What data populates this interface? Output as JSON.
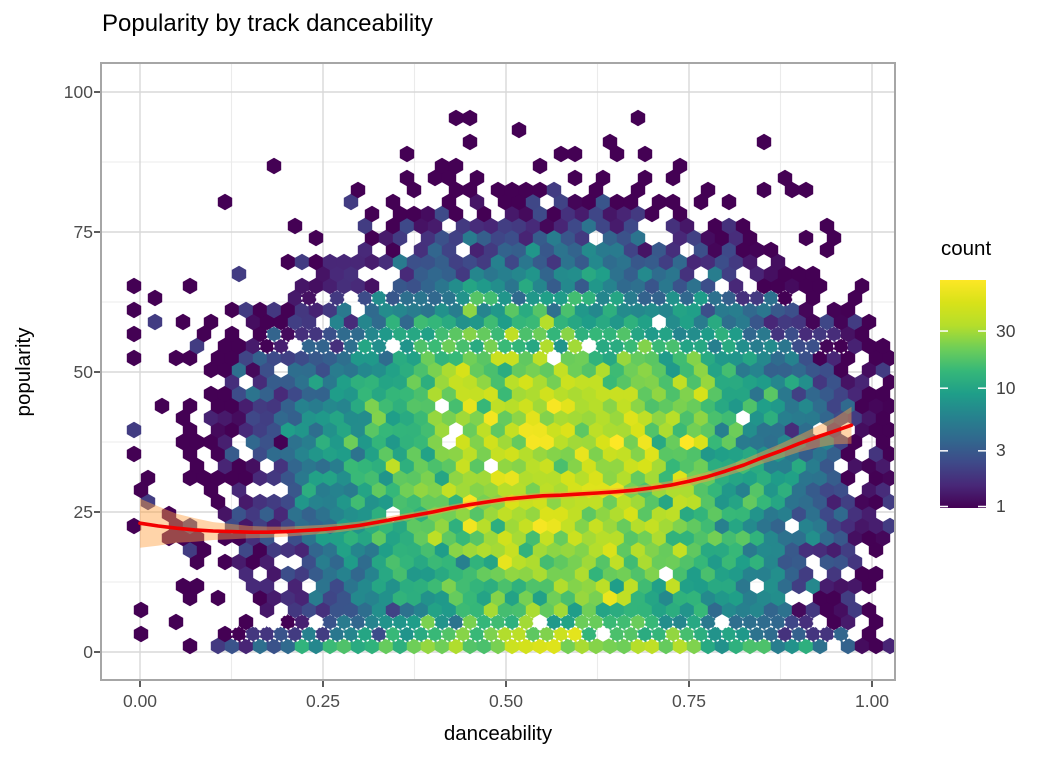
{
  "title": "Popularity by track danceability",
  "axes": {
    "x_label": "danceability",
    "y_label": "popularity",
    "x_ticks": [
      "0.00",
      "0.25",
      "0.50",
      "0.75",
      "1.00"
    ],
    "y_ticks": [
      "100",
      "75",
      "50",
      "25",
      "0"
    ]
  },
  "legend": {
    "title": "count",
    "ticks": [
      "30",
      "10",
      "3",
      "1"
    ],
    "tick_values": [
      30,
      10,
      3,
      1
    ]
  },
  "theme": {
    "background": "#ffffff",
    "grid_major": "#d8d8d8",
    "grid_minor": "#ebebeb",
    "panel_border": "#a6a6a6",
    "tick_mark": "#333333",
    "tick_label_color": "#4d4d4d",
    "text_color": "#000000"
  },
  "chart_data": {
    "type": "hexbin",
    "title": "Popularity by track danceability",
    "xlabel": "danceability",
    "ylabel": "popularity",
    "xlim": [
      0,
      1
    ],
    "ylim": [
      0,
      100
    ],
    "x_tick_values": [
      0,
      0.25,
      0.5,
      0.75,
      1
    ],
    "y_tick_values": [
      0,
      25,
      50,
      75,
      100
    ],
    "legend_position": "right",
    "grid": true,
    "color_scale": {
      "name": "viridis",
      "trans": "log",
      "domain": [
        1,
        80
      ],
      "stops": [
        [
          0,
          "#440154"
        ],
        [
          0.1,
          "#482878"
        ],
        [
          0.2,
          "#3e4a89"
        ],
        [
          0.3,
          "#31688e"
        ],
        [
          0.4,
          "#26828e"
        ],
        [
          0.5,
          "#1f9e89"
        ],
        [
          0.6,
          "#35b779"
        ],
        [
          0.7,
          "#6ece58"
        ],
        [
          0.8,
          "#b5de2b"
        ],
        [
          0.9,
          "#d8e219"
        ],
        [
          1,
          "#fde725"
        ]
      ]
    },
    "smooth": {
      "method": "loess",
      "line_color": "#f30000",
      "band_color": "rgba(255,160,64,0.45)",
      "x": [
        0,
        0.025,
        0.05,
        0.075,
        0.1,
        0.125,
        0.15,
        0.175,
        0.2,
        0.225,
        0.25,
        0.275,
        0.3,
        0.325,
        0.35,
        0.375,
        0.4,
        0.425,
        0.45,
        0.475,
        0.5,
        0.525,
        0.55,
        0.575,
        0.6,
        0.625,
        0.65,
        0.675,
        0.7,
        0.725,
        0.75,
        0.775,
        0.8,
        0.825,
        0.85,
        0.875,
        0.9,
        0.925,
        0.95,
        0.972
      ],
      "y": [
        23.0,
        22.5,
        22.1,
        21.8,
        21.6,
        21.5,
        21.4,
        21.4,
        21.5,
        21.7,
        21.9,
        22.2,
        22.6,
        23.2,
        23.8,
        24.4,
        25.0,
        25.7,
        26.3,
        26.8,
        27.3,
        27.6,
        27.9,
        28.0,
        28.2,
        28.4,
        28.6,
        28.9,
        29.3,
        29.8,
        30.5,
        31.3,
        32.3,
        33.4,
        34.7,
        35.9,
        37.2,
        38.4,
        39.5,
        40.5
      ],
      "half_width": [
        4.4,
        3.5,
        2.6,
        2.1,
        1.6,
        1.35,
        1.1,
        1.0,
        0.9,
        0.85,
        0.8,
        0.75,
        0.7,
        0.65,
        0.65,
        0.62,
        0.6,
        0.6,
        0.6,
        0.6,
        0.6,
        0.6,
        0.6,
        0.6,
        0.6,
        0.6,
        0.62,
        0.65,
        0.7,
        0.75,
        0.8,
        0.85,
        0.9,
        1.0,
        1.1,
        1.3,
        1.5,
        1.9,
        2.4,
        3.3
      ]
    },
    "density_model": {
      "comment": "gaussian mixture giving expected hex counts; cx/sx in danceability units, cy/sy in popularity units",
      "gaussians": [
        {
          "amp": 26,
          "cx": 0.58,
          "sx": 0.155,
          "cy": 27,
          "sy": 14.5
        },
        {
          "amp": 16,
          "cx": 0.56,
          "sx": 0.17,
          "cy": 47,
          "sy": 9
        },
        {
          "amp": 9,
          "cx": 0.55,
          "sx": 0.19,
          "cy": 30,
          "sy": 21
        },
        {
          "amp": 26,
          "cx": 0.55,
          "sx": 0.18,
          "cy": 0.5,
          "sy": 2.2
        },
        {
          "amp": 2.2,
          "cx": 0.58,
          "sx": 0.16,
          "cy": 68,
          "sy": 7.5
        }
      ],
      "noise_sigma": 0.42,
      "seed": 42,
      "sparse_threshold": 0.85,
      "sparse_prob_scale": 0.55,
      "fringe_dropout": 0.15,
      "global_dropout": 0.02,
      "dashed_rows_popularity": [
        63.2,
        56.8,
        54.6,
        5.4,
        3.2
      ],
      "outlier_hexes": [
        [
          0.44,
          94.5
        ],
        [
          0.455,
          94.5
        ],
        [
          0.64,
          92
        ],
        [
          0.655,
          88.5
        ],
        [
          0.425,
          85.5
        ],
        [
          0.465,
          85.5
        ],
        [
          0.555,
          86
        ],
        [
          0.585,
          85
        ],
        [
          0.625,
          85.5
        ],
        [
          0.73,
          85.5
        ],
        [
          0.775,
          82
        ],
        [
          0.8,
          81
        ],
        [
          0.89,
          85
        ],
        [
          0.9,
          82
        ],
        [
          0.915,
          81.5
        ],
        [
          0.35,
          78
        ],
        [
          0.405,
          77
        ],
        [
          0.52,
          78.5
        ],
        [
          0.6,
          79
        ],
        [
          0.68,
          77.5
        ],
        [
          0.3,
          71
        ],
        [
          0.0,
          65
        ],
        [
          0.015,
          63.5
        ],
        [
          0.0,
          61.5
        ],
        [
          0.0,
          57.5
        ],
        [
          0.0,
          52
        ],
        [
          0.0,
          29
        ],
        [
          0.0,
          23.5
        ],
        [
          0.0,
          7.5
        ],
        [
          0.05,
          12
        ],
        [
          0.07,
          44
        ],
        [
          0.12,
          55
        ],
        [
          0.95,
          73
        ],
        [
          0.99,
          56
        ],
        [
          1.0,
          45
        ],
        [
          0.985,
          38.5
        ],
        [
          0.975,
          36
        ],
        [
          1.0,
          30
        ],
        [
          0.96,
          22
        ],
        [
          0.93,
          12
        ],
        [
          0.99,
          8
        ],
        [
          0.915,
          5
        ]
      ]
    }
  }
}
